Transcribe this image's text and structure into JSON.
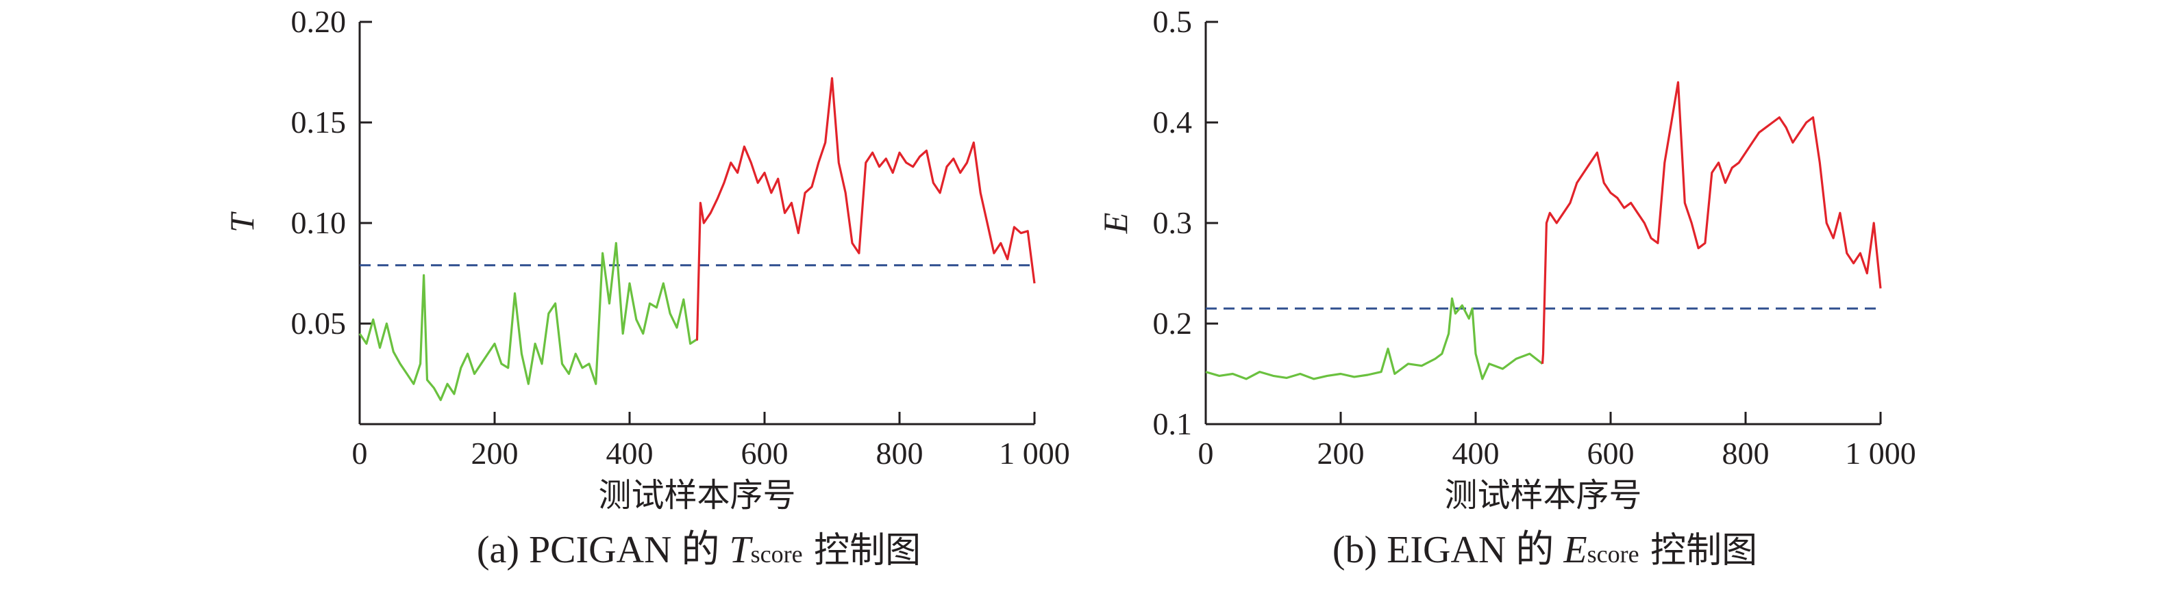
{
  "chart_data": [
    {
      "type": "line",
      "panel": "a",
      "ylabel": "T",
      "xlabel": "测试样本序号",
      "caption_prefix": "(a) PCIGAN 的",
      "caption_var": "T",
      "caption_sub": "score",
      "caption_suffix": "控制图",
      "xlim": [
        0,
        1000
      ],
      "ylim": [
        0.0,
        0.2
      ],
      "xticks": [
        0,
        200,
        400,
        600,
        800,
        1000
      ],
      "xtick_labels": [
        "0",
        "200",
        "400",
        "600",
        "800",
        "1 000"
      ],
      "yticks": [
        0.05,
        0.1,
        0.15,
        0.2
      ],
      "ytick_labels": [
        "0.05",
        "0.10",
        "0.15",
        "0.20"
      ],
      "threshold": 0.079,
      "colors": {
        "normal": "#6ac13f",
        "fault": "#e2232a",
        "threshold": "#2f4f8f",
        "axis": "#231f20"
      },
      "series": [
        {
          "x": [
            0,
            10,
            20,
            30,
            40,
            50,
            60,
            70,
            80,
            90,
            95,
            100,
            110,
            120,
            130,
            140,
            150,
            160,
            170,
            180,
            190,
            200,
            210,
            220,
            230,
            240,
            250,
            260,
            270,
            280,
            290,
            300,
            310,
            320,
            330,
            340,
            350,
            360,
            370,
            380,
            390,
            400,
            410,
            420,
            430,
            440,
            450,
            460,
            470,
            480,
            490,
            499
          ],
          "y": [
            0.045,
            0.04,
            0.052,
            0.038,
            0.05,
            0.036,
            0.03,
            0.025,
            0.02,
            0.03,
            0.074,
            0.022,
            0.018,
            0.012,
            0.02,
            0.015,
            0.028,
            0.035,
            0.025,
            0.03,
            0.035,
            0.04,
            0.03,
            0.028,
            0.065,
            0.035,
            0.02,
            0.04,
            0.03,
            0.055,
            0.06,
            0.03,
            0.025,
            0.035,
            0.028,
            0.03,
            0.02,
            0.085,
            0.06,
            0.09,
            0.045,
            0.07,
            0.052,
            0.045,
            0.06,
            0.058,
            0.07,
            0.055,
            0.048,
            0.062,
            0.04,
            0.042
          ]
        },
        {
          "x": [
            500,
            505,
            510,
            520,
            530,
            540,
            550,
            560,
            570,
            580,
            590,
            600,
            610,
            620,
            630,
            640,
            650,
            660,
            670,
            680,
            690,
            700,
            710,
            720,
            730,
            740,
            750,
            760,
            770,
            780,
            790,
            800,
            810,
            820,
            830,
            840,
            850,
            860,
            870,
            880,
            890,
            900,
            910,
            920,
            930,
            940,
            950,
            960,
            970,
            980,
            990,
            1000
          ],
          "y": [
            0.042,
            0.11,
            0.1,
            0.105,
            0.112,
            0.12,
            0.13,
            0.125,
            0.138,
            0.13,
            0.12,
            0.125,
            0.115,
            0.122,
            0.105,
            0.11,
            0.095,
            0.115,
            0.118,
            0.13,
            0.14,
            0.172,
            0.13,
            0.115,
            0.09,
            0.085,
            0.13,
            0.135,
            0.128,
            0.132,
            0.125,
            0.135,
            0.13,
            0.128,
            0.133,
            0.136,
            0.12,
            0.115,
            0.128,
            0.132,
            0.125,
            0.13,
            0.14,
            0.115,
            0.1,
            0.085,
            0.09,
            0.082,
            0.098,
            0.095,
            0.096,
            0.07
          ]
        }
      ]
    },
    {
      "type": "line",
      "panel": "b",
      "ylabel": "E",
      "xlabel": "测试样本序号",
      "caption_prefix": "(b) EIGAN 的",
      "caption_var": "E",
      "caption_sub": "score",
      "caption_suffix": "控制图",
      "xlim": [
        0,
        1000
      ],
      "ylim": [
        0.1,
        0.5
      ],
      "xticks": [
        0,
        200,
        400,
        600,
        800,
        1000
      ],
      "xtick_labels": [
        "0",
        "200",
        "400",
        "600",
        "800",
        "1 000"
      ],
      "yticks": [
        0.1,
        0.2,
        0.3,
        0.4,
        0.5
      ],
      "ytick_labels": [
        "0.1",
        "0.2",
        "0.3",
        "0.4",
        "0.5"
      ],
      "threshold": 0.215,
      "colors": {
        "normal": "#6ac13f",
        "fault": "#e2232a",
        "threshold": "#2f4f8f",
        "axis": "#231f20"
      },
      "series": [
        {
          "x": [
            0,
            20,
            40,
            60,
            80,
            100,
            120,
            140,
            160,
            180,
            200,
            220,
            240,
            260,
            270,
            280,
            300,
            320,
            340,
            350,
            360,
            365,
            370,
            380,
            390,
            395,
            400,
            410,
            420,
            440,
            460,
            480,
            499
          ],
          "y": [
            0.152,
            0.148,
            0.15,
            0.145,
            0.152,
            0.148,
            0.146,
            0.15,
            0.145,
            0.148,
            0.15,
            0.147,
            0.149,
            0.152,
            0.175,
            0.15,
            0.16,
            0.158,
            0.165,
            0.17,
            0.19,
            0.225,
            0.21,
            0.218,
            0.205,
            0.215,
            0.17,
            0.145,
            0.16,
            0.155,
            0.165,
            0.17,
            0.16
          ]
        },
        {
          "x": [
            500,
            505,
            510,
            520,
            530,
            540,
            550,
            560,
            570,
            580,
            590,
            600,
            610,
            620,
            630,
            640,
            650,
            660,
            670,
            680,
            690,
            700,
            710,
            720,
            730,
            740,
            750,
            760,
            770,
            780,
            790,
            800,
            810,
            820,
            830,
            840,
            850,
            860,
            870,
            880,
            890,
            900,
            910,
            920,
            930,
            940,
            950,
            960,
            970,
            980,
            990,
            1000
          ],
          "y": [
            0.17,
            0.3,
            0.31,
            0.3,
            0.31,
            0.32,
            0.34,
            0.35,
            0.36,
            0.37,
            0.34,
            0.33,
            0.325,
            0.315,
            0.32,
            0.31,
            0.3,
            0.285,
            0.28,
            0.36,
            0.4,
            0.44,
            0.32,
            0.3,
            0.275,
            0.28,
            0.35,
            0.36,
            0.34,
            0.355,
            0.36,
            0.37,
            0.38,
            0.39,
            0.395,
            0.4,
            0.405,
            0.395,
            0.38,
            0.39,
            0.4,
            0.405,
            0.36,
            0.3,
            0.285,
            0.31,
            0.27,
            0.26,
            0.27,
            0.25,
            0.3,
            0.235
          ]
        }
      ]
    }
  ]
}
